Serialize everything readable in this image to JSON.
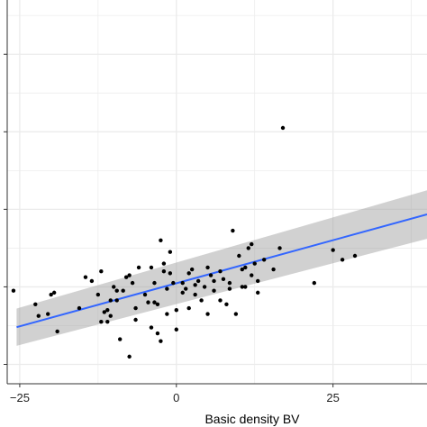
{
  "chart_data": {
    "type": "scatter",
    "xlabel": "Basic density BV",
    "ylabel": "",
    "title": "",
    "xlim": [
      -27,
      40
    ],
    "ylim": [
      -5,
      94
    ],
    "x_ticks": [
      -25,
      0,
      25
    ],
    "x_tick_labels": [
      "−25",
      "0",
      "25"
    ],
    "x_minor_ticks": [
      -12.5,
      12.5,
      37.5
    ],
    "y_ticks": [
      0,
      20,
      40,
      60,
      80
    ],
    "y_minor_ticks": [
      10,
      30,
      50,
      70,
      90
    ],
    "grid": true,
    "background": "#ffffff",
    "grid_color": "#ebebeb",
    "points_color": "#000000",
    "fit": {
      "method": "linear",
      "color": "#3366ff",
      "band_color": "#999999",
      "x": [
        -25.5,
        40
      ],
      "y_fit": [
        9.6,
        38.7
      ],
      "band_low": [
        4.8,
        32.4
      ],
      "band_high": [
        14.4,
        44.9
      ]
    },
    "points": [
      [
        -26,
        19
      ],
      [
        -22.5,
        15.5
      ],
      [
        -22,
        12.5
      ],
      [
        -20.5,
        13
      ],
      [
        -20,
        18
      ],
      [
        -19.5,
        18.5
      ],
      [
        -19,
        8.5
      ],
      [
        -15.5,
        14.5
      ],
      [
        -14.5,
        22.5
      ],
      [
        -13.5,
        21.5
      ],
      [
        -12.5,
        18
      ],
      [
        -12,
        24
      ],
      [
        -12,
        11
      ],
      [
        -11.5,
        13.5
      ],
      [
        -11,
        14
      ],
      [
        -11,
        11
      ],
      [
        -10.5,
        16.5
      ],
      [
        -10.5,
        12.5
      ],
      [
        -10,
        20
      ],
      [
        -9.5,
        19
      ],
      [
        -9.5,
        16.5
      ],
      [
        -9,
        6.5
      ],
      [
        -8.5,
        19
      ],
      [
        -8,
        22.5
      ],
      [
        -7.5,
        23
      ],
      [
        -7.5,
        2
      ],
      [
        -7,
        21
      ],
      [
        -6.5,
        14.5
      ],
      [
        -6.5,
        11.5
      ],
      [
        -6,
        25
      ],
      [
        -5,
        18
      ],
      [
        -4.5,
        16
      ],
      [
        -4,
        25
      ],
      [
        -4,
        9.5
      ],
      [
        -3.5,
        21
      ],
      [
        -3.5,
        16
      ],
      [
        -3,
        8
      ],
      [
        -3,
        15.5
      ],
      [
        -2.5,
        32
      ],
      [
        -2.5,
        6
      ],
      [
        -2,
        26
      ],
      [
        -2,
        24
      ],
      [
        -1.5,
        19.5
      ],
      [
        -1.5,
        13
      ],
      [
        -1,
        29
      ],
      [
        -1,
        23.5
      ],
      [
        -0.5,
        21
      ],
      [
        0,
        14
      ],
      [
        0,
        9
      ],
      [
        1,
        18.5
      ],
      [
        1,
        21
      ],
      [
        1.5,
        19.5
      ],
      [
        2,
        23.5
      ],
      [
        2,
        14.5
      ],
      [
        2.5,
        24.5
      ],
      [
        3,
        20.5
      ],
      [
        3,
        18
      ],
      [
        3.5,
        21.5
      ],
      [
        4,
        16.5
      ],
      [
        4.5,
        20
      ],
      [
        5,
        13
      ],
      [
        5,
        25
      ],
      [
        5.5,
        23
      ],
      [
        6,
        19
      ],
      [
        6,
        21.5
      ],
      [
        7,
        16.5
      ],
      [
        7,
        24
      ],
      [
        7.5,
        22
      ],
      [
        8,
        15.5
      ],
      [
        8.5,
        21
      ],
      [
        8.5,
        19.5
      ],
      [
        9,
        34.5
      ],
      [
        9.5,
        13
      ],
      [
        10,
        28
      ],
      [
        10.5,
        24.5
      ],
      [
        10.5,
        20
      ],
      [
        11,
        20
      ],
      [
        11,
        25
      ],
      [
        11.5,
        30
      ],
      [
        12,
        23
      ],
      [
        12,
        31
      ],
      [
        12.5,
        26
      ],
      [
        13,
        21.5
      ],
      [
        13,
        18.5
      ],
      [
        14,
        27
      ],
      [
        15.5,
        24.5
      ],
      [
        16.5,
        30
      ],
      [
        17,
        61
      ],
      [
        22,
        21
      ],
      [
        25,
        29.5
      ],
      [
        26.5,
        27
      ],
      [
        28.5,
        28
      ]
    ]
  }
}
